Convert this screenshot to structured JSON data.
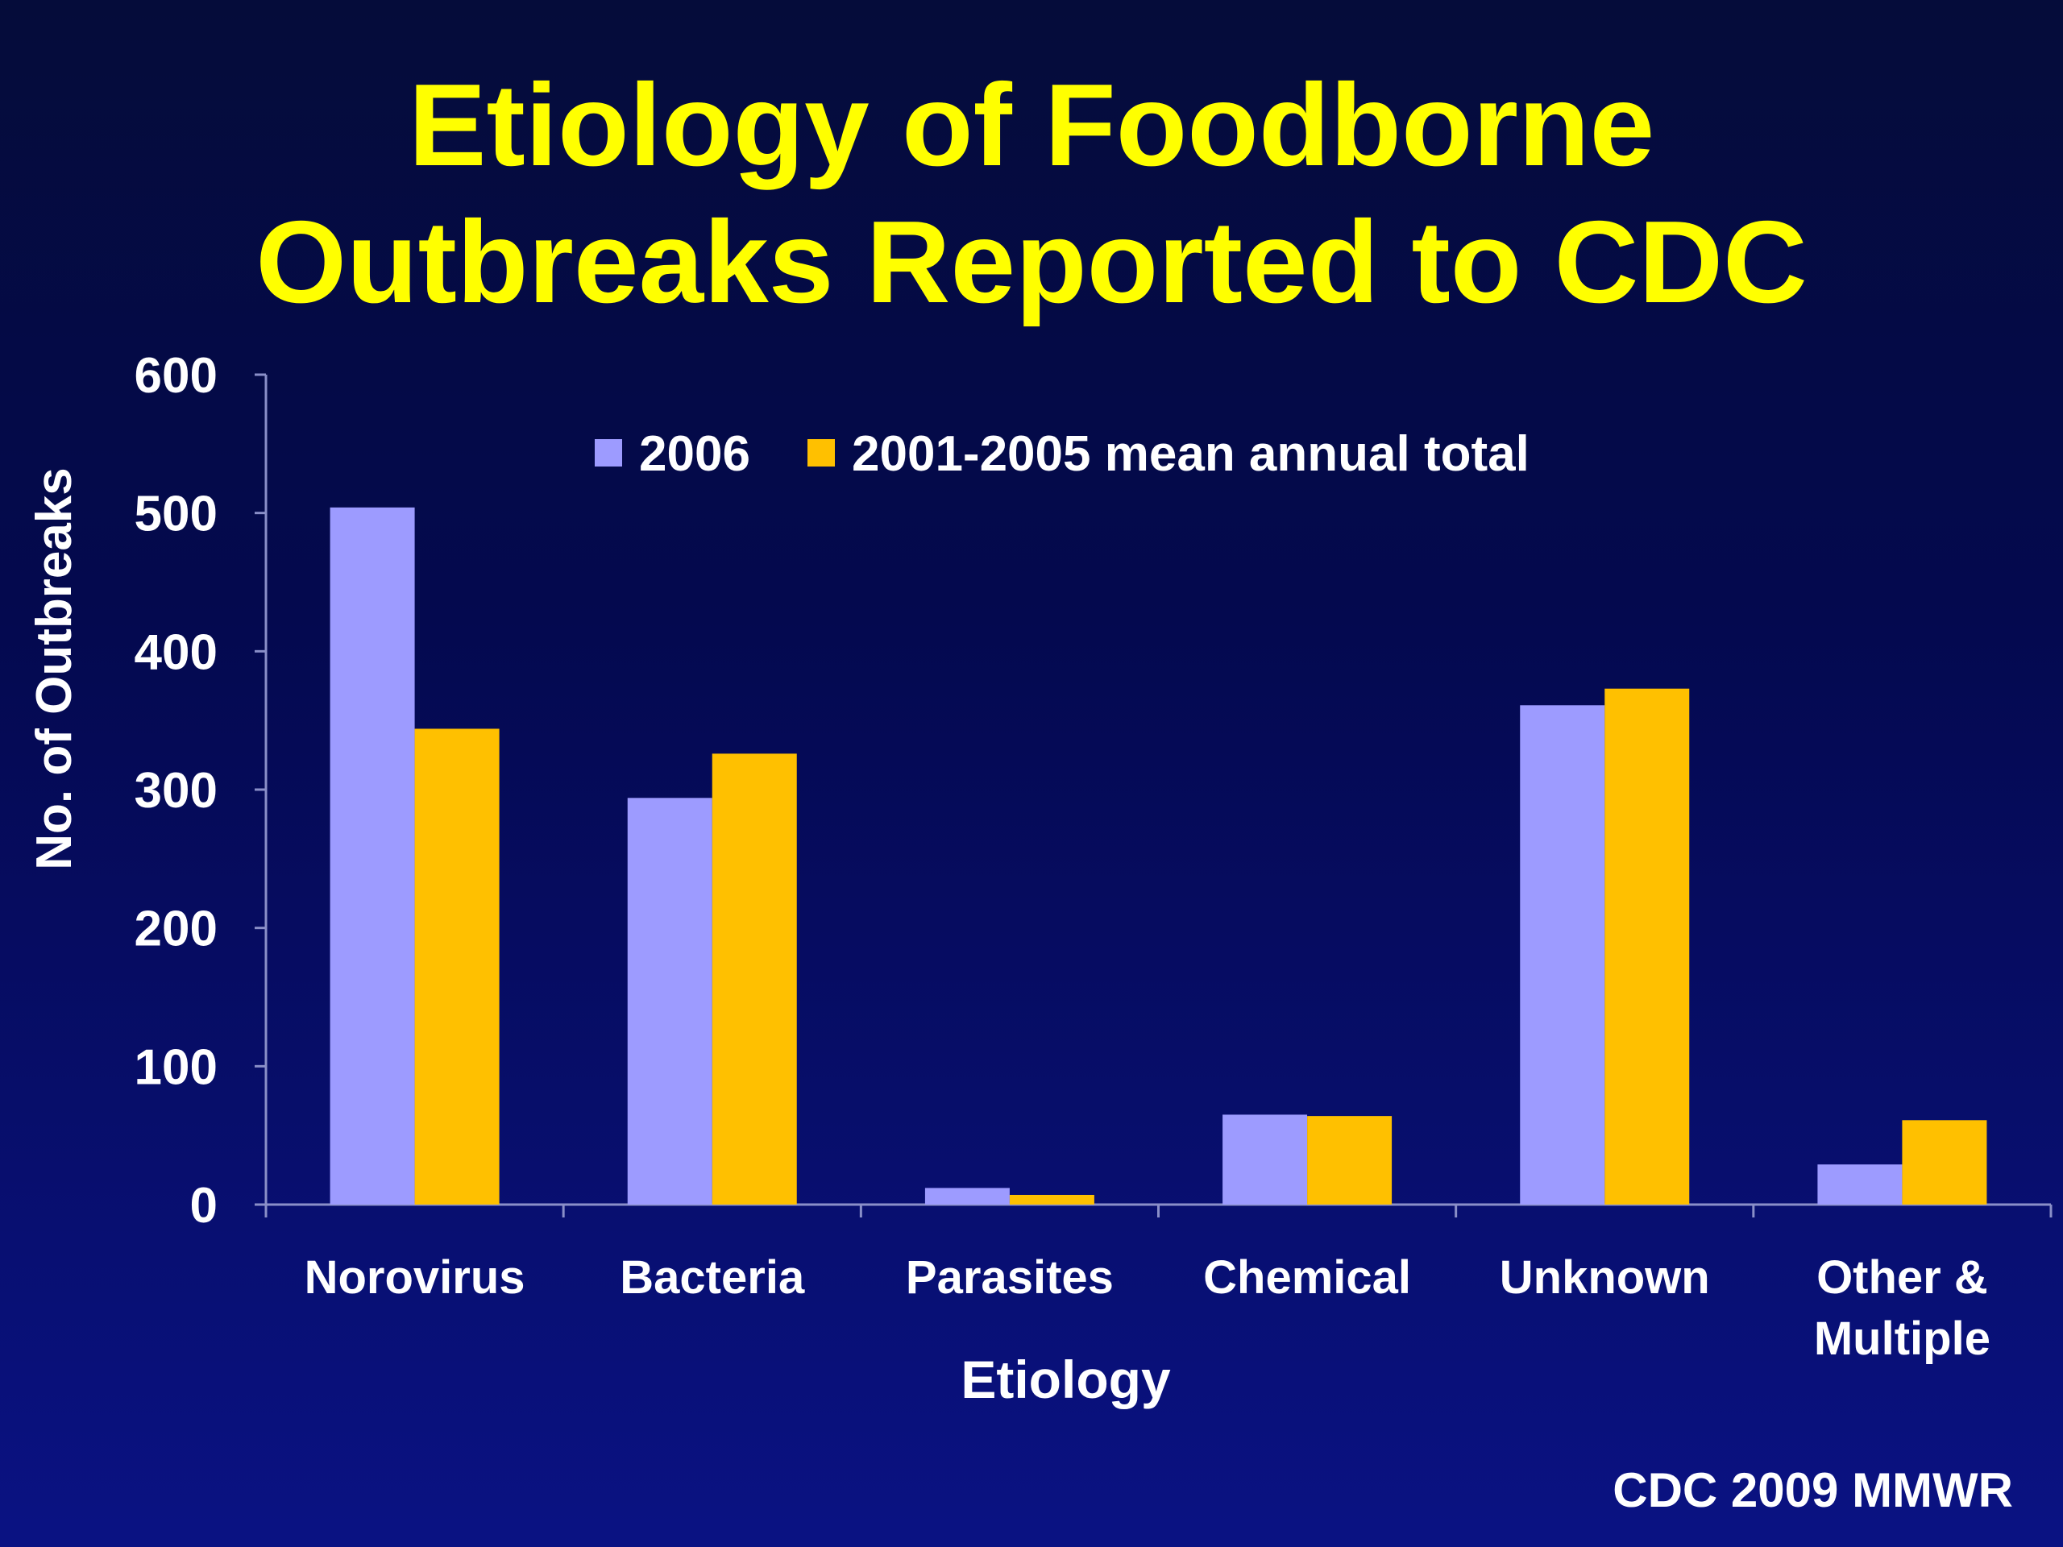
{
  "slide": {
    "title_line1": "Etiology of Foodborne",
    "title_line2": "Outbreaks Reported to CDC",
    "source": "CDC 2009 MMWR"
  },
  "colors": {
    "series_2006": "#9d9bff",
    "series_mean": "#ffc000",
    "title": "#ffff00",
    "text": "#ffffff",
    "axis": "#8a8fc8"
  },
  "chart_data": {
    "type": "bar",
    "title": "Etiology of Foodborne Outbreaks Reported to CDC",
    "xlabel": "Etiology",
    "ylabel": "No. of Outbreaks",
    "ylim": [
      0,
      600
    ],
    "yticks": [
      0,
      100,
      200,
      300,
      400,
      500,
      600
    ],
    "grid": false,
    "legend_position": "top-center",
    "categories": [
      [
        "Norovirus"
      ],
      [
        "Bacteria"
      ],
      [
        "Parasites"
      ],
      [
        "Chemical"
      ],
      [
        "Unknown"
      ],
      [
        "Other &",
        "Multiple"
      ]
    ],
    "series": [
      {
        "name": "2006",
        "values": [
          504,
          294,
          12,
          65,
          361,
          29
        ]
      },
      {
        "name": "2001-2005 mean annual total",
        "values": [
          344,
          326,
          7,
          64,
          373,
          61
        ]
      }
    ]
  }
}
